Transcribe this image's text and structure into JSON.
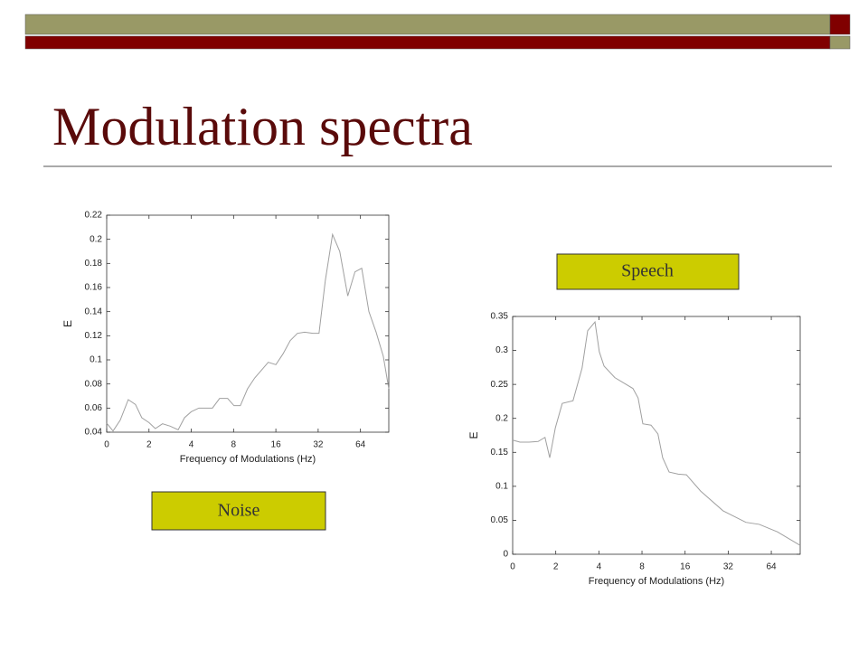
{
  "title": "Modulation spectra",
  "labels": {
    "noise": "Noise",
    "speech": "Speech"
  },
  "chart_data": [
    {
      "type": "line",
      "xlabel": "Frequency of Modulations (Hz)",
      "ylabel": "E",
      "color": "#a0a0a0",
      "x": [
        0,
        0.15,
        0.32,
        0.51,
        0.68,
        0.83,
        1.0,
        1.15,
        1.32,
        1.5,
        1.69,
        1.84,
        2.0,
        2.18,
        2.5,
        2.67,
        2.86,
        3.01,
        3.16,
        3.33,
        3.5,
        3.82,
        4.0,
        4.17,
        4.34,
        4.51,
        4.68,
        4.87,
        5.02,
        5.17,
        5.34,
        5.51,
        5.7,
        5.87,
        6.03,
        6.2,
        6.37,
        6.54,
        6.67
      ],
      "values": [
        0.0475,
        0.041,
        0.05,
        0.067,
        0.063,
        0.052,
        0.048,
        0.043,
        0.047,
        0.045,
        0.042,
        0.052,
        0.057,
        0.06,
        0.06,
        0.068,
        0.068,
        0.062,
        0.062,
        0.076,
        0.085,
        0.098,
        0.096,
        0.105,
        0.116,
        0.122,
        0.123,
        0.122,
        0.122,
        0.166,
        0.204,
        0.19,
        0.153,
        0.173,
        0.176,
        0.14,
        0.123,
        0.103,
        0.076
      ],
      "xlim": [
        0,
        6.67
      ],
      "xticks": [
        {
          "value": 0,
          "label": "0"
        },
        {
          "value": 1,
          "label": "2"
        },
        {
          "value": 2,
          "label": "4"
        },
        {
          "value": 3,
          "label": "8"
        },
        {
          "value": 4,
          "label": "16"
        },
        {
          "value": 5,
          "label": "32"
        },
        {
          "value": 6,
          "label": "64"
        }
      ],
      "ylim": [
        0.04,
        0.22
      ],
      "yticks": [
        0.04,
        0.06,
        0.08,
        0.1,
        0.12,
        0.14,
        0.16,
        0.18,
        0.2,
        0.22
      ]
    },
    {
      "type": "line",
      "xlabel": "Frequency of Modulations (Hz)",
      "ylabel": "E",
      "color": "#a0a0a0",
      "x": [
        0,
        0.17,
        0.38,
        0.59,
        0.75,
        0.86,
        0.99,
        1.15,
        1.4,
        1.61,
        1.74,
        1.91,
        2.01,
        2.12,
        2.37,
        2.79,
        2.91,
        3.02,
        3.21,
        3.37,
        3.48,
        3.63,
        3.84,
        4.03,
        4.36,
        4.88,
        5.41,
        5.72,
        6.14,
        6.67
      ],
      "values": [
        0.168,
        0.165,
        0.165,
        0.166,
        0.172,
        0.142,
        0.186,
        0.222,
        0.226,
        0.274,
        0.329,
        0.342,
        0.298,
        0.277,
        0.26,
        0.244,
        0.23,
        0.192,
        0.19,
        0.177,
        0.142,
        0.121,
        0.118,
        0.117,
        0.093,
        0.064,
        0.047,
        0.044,
        0.033,
        0.013
      ],
      "xlim": [
        0,
        6.67
      ],
      "xticks": [
        {
          "value": 0,
          "label": "0"
        },
        {
          "value": 1,
          "label": "2"
        },
        {
          "value": 2,
          "label": "4"
        },
        {
          "value": 3,
          "label": "8"
        },
        {
          "value": 4,
          "label": "16"
        },
        {
          "value": 5,
          "label": "32"
        },
        {
          "value": 6,
          "label": "64"
        }
      ],
      "ylim": [
        0,
        0.35
      ],
      "yticks": [
        0,
        0.05,
        0.1,
        0.15,
        0.2,
        0.25,
        0.3,
        0.35
      ]
    }
  ]
}
